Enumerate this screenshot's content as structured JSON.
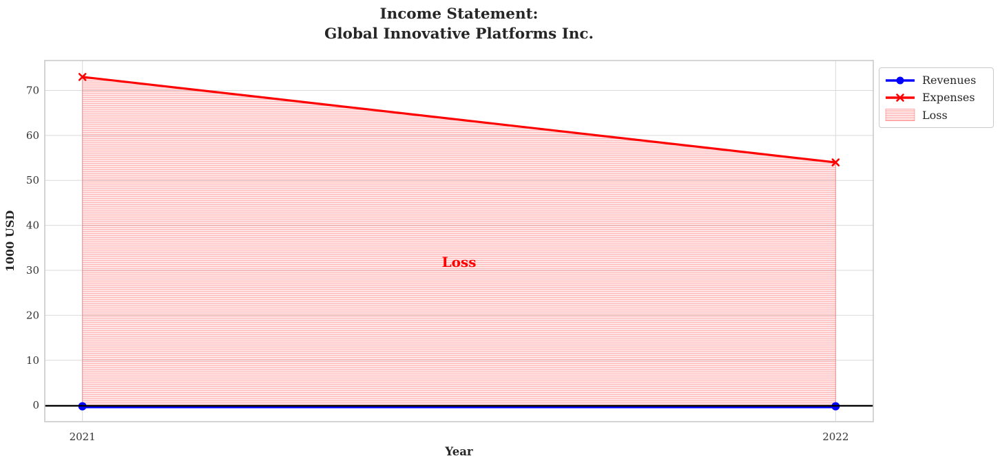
{
  "title": {
    "line1": "Income Statement:",
    "line2": "Global Innovative Platforms Inc."
  },
  "chart_data": {
    "type": "line",
    "x": [
      2021,
      2022
    ],
    "series": [
      {
        "name": "Revenues",
        "values": [
          0,
          0
        ],
        "color": "#0000ff",
        "marker": "circle"
      },
      {
        "name": "Expenses",
        "values": [
          73,
          54
        ],
        "color": "#ff0000",
        "marker": "x"
      }
    ],
    "loss_area": {
      "label": "Loss",
      "between": [
        "Expenses",
        "Revenues"
      ],
      "fill_color": "rgba(255,0,0,0.08)",
      "hatch_color": "rgba(255,0,0,0.22)",
      "edge_color": "rgba(255,0,0,0.30)",
      "hatch_style": "horizontal-lines"
    },
    "annotation": {
      "text": "Loss",
      "x": 2021.5,
      "y": 31.8,
      "color": "#ff0000"
    },
    "xlabel": "Year",
    "ylabel": "1000 USD",
    "xlim": [
      2020.95,
      2022.05
    ],
    "ylim": [
      -3.65,
      76.65
    ],
    "xticks": [
      "2021",
      "2022"
    ],
    "xtick_values": [
      2021,
      2022
    ],
    "yticks": [
      0,
      10,
      20,
      30,
      40,
      50,
      60,
      70
    ],
    "grid": true,
    "grid_color": "#d9d9d9",
    "frame_color": "#c9c9c9",
    "tick_label_color": "#333333",
    "text_color": "#262626",
    "zero_line_color": "#000000",
    "legend": {
      "position": "outside-top-right",
      "items": [
        {
          "label": "Revenues",
          "swatch": "line-circle",
          "color": "#0000ff"
        },
        {
          "label": "Expenses",
          "swatch": "line-x",
          "color": "#ff0000"
        },
        {
          "label": "Loss",
          "swatch": "hatch-patch",
          "color": "rgba(255,0,0,0.22)",
          "fill": "rgba(255,0,0,0.08)"
        }
      ]
    }
  }
}
